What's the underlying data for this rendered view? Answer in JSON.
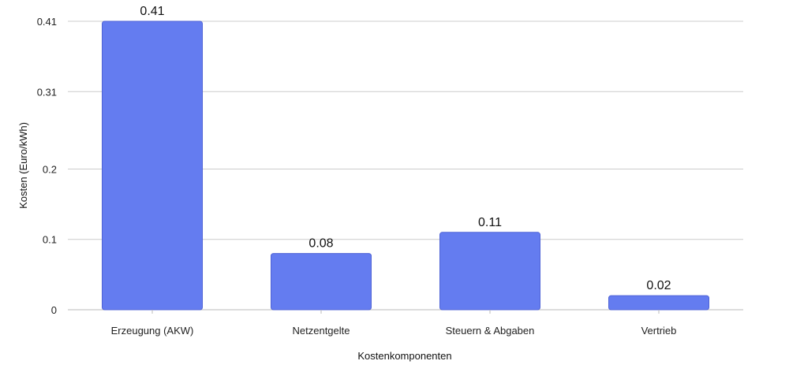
{
  "chart_data": {
    "type": "bar",
    "title": "",
    "xlabel": "Kostenkomponenten",
    "ylabel": "Kosten (Euro/kWh)",
    "categories": [
      "Erzeugung (AKW)",
      "Netzentgelte",
      "Steuern & Abgaben",
      "Vertrieb"
    ],
    "values": [
      0.41,
      0.08,
      0.11,
      0.02
    ],
    "data_labels": [
      "0.41",
      "0.08",
      "0.11",
      "0.02"
    ],
    "y_ticks": [
      0,
      0.1,
      0.2,
      0.31,
      0.41
    ],
    "y_tick_labels": [
      "0",
      "0.1",
      "0.2",
      "0.31",
      "0.41"
    ],
    "ylim": [
      0,
      0.41
    ],
    "grid": true,
    "legend": "none",
    "bar_color": "#647cf0",
    "bar_edge_color": "#4f63d6",
    "grid_color": "#cccccc"
  }
}
